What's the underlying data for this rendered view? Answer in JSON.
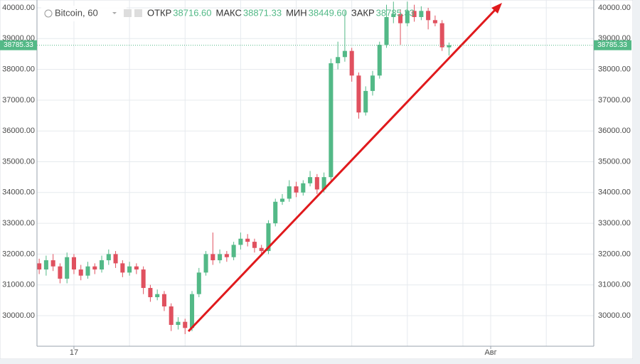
{
  "chart_data": {
    "type": "candlestick",
    "header": {
      "symbol": "Bitcoin, 60",
      "items": [
        {
          "label": "ОТКР",
          "value": "38716.60"
        },
        {
          "label": "МАКС",
          "value": "38871.33"
        },
        {
          "label": "МИН",
          "value": "38449.60"
        },
        {
          "label": "ЗАКР",
          "value": "38785.33"
        }
      ]
    },
    "current_price": 38785.33,
    "x": [
      15.75,
      16,
      16.25,
      16.5,
      16.75,
      17,
      17.25,
      17.5,
      17.75,
      18,
      18.25,
      18.5,
      18.75,
      19,
      19.25,
      19.5,
      19.75,
      20,
      20.25,
      20.5,
      20.75,
      21,
      21.25,
      21.5,
      21.75,
      22,
      22.25,
      22.5,
      22.75,
      23,
      23.25,
      23.5,
      23.75,
      24,
      24.25,
      24.5,
      24.75,
      25,
      25.25,
      25.5,
      25.75,
      26,
      26.25,
      26.5,
      26.75,
      27,
      27.25,
      27.5,
      27.75,
      28,
      28.25,
      28.5,
      28.75,
      29,
      29.25,
      29.5,
      29.75,
      30,
      30.25,
      30.5
    ],
    "open": [
      31700,
      31500,
      31800,
      31600,
      31200,
      31900,
      31500,
      31300,
      31600,
      31500,
      31800,
      32000,
      31700,
      31400,
      31600,
      31500,
      30900,
      30600,
      30700,
      30300,
      29700,
      29800,
      29600,
      30700,
      31400,
      32000,
      31800,
      32000,
      31900,
      32300,
      32500,
      32400,
      32200,
      32100,
      33000,
      33700,
      33800,
      34200,
      34000,
      34300,
      34500,
      34100,
      34500,
      38200,
      38400,
      38600,
      37800,
      36600,
      37300,
      37800,
      38800,
      39700,
      39800,
      39500,
      39900,
      39700,
      39900,
      39600,
      39500,
      38716.6
    ],
    "high": [
      31850,
      31950,
      32000,
      31700,
      32050,
      32000,
      31650,
      31750,
      31700,
      31950,
      32150,
      32100,
      31800,
      31750,
      31700,
      31600,
      31000,
      30850,
      30800,
      30400,
      29950,
      29900,
      30800,
      31550,
      32100,
      32700,
      32150,
      32100,
      32400,
      32700,
      32650,
      32500,
      32300,
      33100,
      33800,
      33950,
      34400,
      34350,
      34400,
      34700,
      34600,
      34650,
      38350,
      38900,
      39900,
      38700,
      37900,
      37450,
      37950,
      38900,
      40100,
      40200,
      39950,
      40200,
      40100,
      40050,
      40000,
      39750,
      39600,
      38871.33
    ],
    "low": [
      31350,
      31300,
      31450,
      31050,
      31050,
      31350,
      31150,
      31200,
      31350,
      31400,
      31650,
      31550,
      31250,
      31300,
      31350,
      30700,
      30450,
      30500,
      30150,
      29500,
      29550,
      29400,
      29500,
      30600,
      31300,
      31650,
      31700,
      31750,
      31800,
      32150,
      32250,
      32050,
      31950,
      32000,
      32900,
      33600,
      33700,
      33850,
      33900,
      34200,
      33950,
      34000,
      34400,
      38000,
      38250,
      37600,
      36400,
      36500,
      37150,
      37700,
      38700,
      39500,
      38800,
      39400,
      39550,
      39600,
      39300,
      39400,
      38600,
      38449.6
    ],
    "close": [
      31500,
      31800,
      31600,
      31200,
      31900,
      31500,
      31300,
      31600,
      31500,
      31800,
      32000,
      31700,
      31400,
      31600,
      31500,
      30900,
      30600,
      30700,
      30300,
      29700,
      29800,
      29600,
      30700,
      31400,
      32000,
      31800,
      32000,
      31900,
      32300,
      32500,
      32400,
      32200,
      32100,
      33000,
      33700,
      33800,
      34200,
      34000,
      34300,
      34500,
      34100,
      34500,
      38200,
      38400,
      38600,
      37800,
      36600,
      37300,
      37800,
      38800,
      39700,
      39800,
      39500,
      39900,
      39700,
      39900,
      39600,
      39500,
      38716.6,
      38785.33
    ],
    "up_color": "#53b987",
    "down_color": "#e0515f",
    "xlim": [
      15.67,
      35.71
    ],
    "xticks": [
      {
        "value": 17,
        "label": "17"
      },
      {
        "value": 32,
        "label": "Авг"
      }
    ],
    "xgrid": [
      19,
      21,
      23,
      25,
      27,
      29,
      31,
      34
    ],
    "ylim": [
      29007,
      40254
    ],
    "yticks": [
      {
        "value": 30000,
        "label": "30000.00"
      },
      {
        "value": 31000,
        "label": "31000.00"
      },
      {
        "value": 32000,
        "label": "32000.00"
      },
      {
        "value": 33000,
        "label": "33000.00"
      },
      {
        "value": 34000,
        "label": "34000.00"
      },
      {
        "value": 35000,
        "label": "35000.00"
      },
      {
        "value": 36000,
        "label": "36000.00"
      },
      {
        "value": 37000,
        "label": "37000.00"
      },
      {
        "value": 38000,
        "label": "38000.00"
      },
      {
        "value": 39000,
        "label": "39000.00"
      },
      {
        "value": 40000,
        "label": "40000.00"
      }
    ],
    "grid": true
  }
}
